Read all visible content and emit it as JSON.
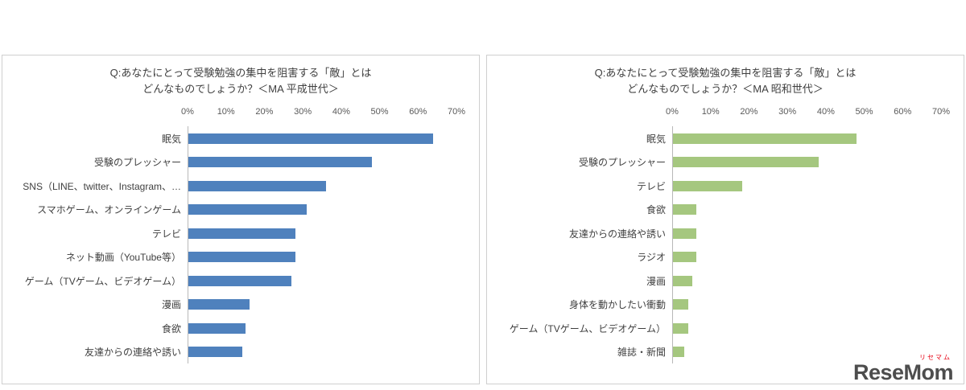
{
  "colors": {
    "heisei_bar": "#4f81bd",
    "showa_bar": "#a5c77f",
    "axis_text": "#595959",
    "label_text": "#404040",
    "panel_border": "#cfcfcf",
    "logo_main": "#4d4d4d",
    "logo_accent": "#e60012"
  },
  "logo": {
    "main": "ReseMom",
    "sub": "リセマム"
  },
  "chart_data": [
    {
      "type": "bar",
      "orientation": "horizontal",
      "title_line1": "Q:あなたにとって受験勉強の集中を阻害する「敵」とは",
      "title_line2": "どんなものでしょうか？＜MA 平成世代＞",
      "bar_color": "#4f81bd",
      "xlim": [
        0,
        70
      ],
      "ticks": [
        "0%",
        "10%",
        "20%",
        "30%",
        "40%",
        "50%",
        "60%",
        "70%"
      ],
      "grid": false,
      "categories": [
        "眠気",
        "受験のプレッシャー",
        "SNS（LINE、twitter、Instagram、…",
        "スマホゲーム、オンラインゲーム",
        "テレビ",
        "ネット動画（YouTube等）",
        "ゲーム（TVゲーム、ビデオゲーム）",
        "漫画",
        "食欲",
        "友達からの連絡や誘い"
      ],
      "values": [
        64,
        48,
        36,
        31,
        28,
        28,
        27,
        16,
        15,
        14
      ]
    },
    {
      "type": "bar",
      "orientation": "horizontal",
      "title_line1": "Q:あなたにとって受験勉強の集中を阻害する「敵」とは",
      "title_line2": "どんなものでしょうか？＜MA 昭和世代＞",
      "bar_color": "#a5c77f",
      "xlim": [
        0,
        70
      ],
      "ticks": [
        "0%",
        "10%",
        "20%",
        "30%",
        "40%",
        "50%",
        "60%",
        "70%"
      ],
      "grid": false,
      "categories": [
        "眠気",
        "受験のプレッシャー",
        "テレビ",
        "食欲",
        "友達からの連絡や誘い",
        "ラジオ",
        "漫画",
        "身体を動かしたい衝動",
        "ゲーム（TVゲーム、ビデオゲーム）",
        "雑誌・新聞"
      ],
      "values": [
        48,
        38,
        18,
        6,
        6,
        6,
        5,
        4,
        4,
        3
      ]
    }
  ]
}
